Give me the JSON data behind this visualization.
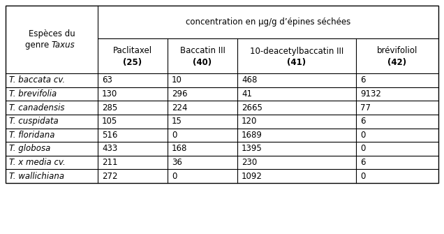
{
  "header_top": "concentration en μg/g d’épines séchées",
  "col_headers_line1": [
    "Paclitaxel",
    "Baccatin III",
    "10-deacetylbaccatin III",
    "brévifoliol"
  ],
  "col_headers_line2": [
    "(25)",
    "(40)",
    "(41)",
    "(42)"
  ],
  "species": [
    "T. baccata cv.",
    "T. brevifolia",
    "T. canadensis",
    "T. cuspidata",
    "T. floridana",
    "T. globosa",
    "T. x media cv.",
    "T. wallichiana"
  ],
  "data": [
    [
      63,
      10,
      468,
      6
    ],
    [
      130,
      296,
      41,
      9132
    ],
    [
      285,
      224,
      2665,
      77
    ],
    [
      105,
      15,
      120,
      6
    ],
    [
      516,
      0,
      1689,
      0
    ],
    [
      433,
      168,
      1395,
      0
    ],
    [
      211,
      36,
      230,
      6
    ],
    [
      272,
      0,
      1092,
      0
    ]
  ],
  "bg_color": "#ffffff",
  "line_color": "#000000",
  "text_color": "#000000",
  "font_size": 8.5,
  "header_font_size": 8.5
}
